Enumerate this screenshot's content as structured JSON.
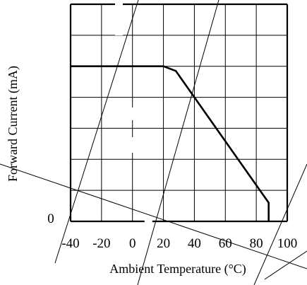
{
  "chart_data": {
    "type": "line",
    "title": "",
    "xlabel": "Ambient Temperature (°C)",
    "ylabel": "Forward Current (mA)",
    "xlim": [
      -40,
      100
    ],
    "ylim": [
      0,
      7
    ],
    "x_ticks": [
      -40,
      -20,
      0,
      20,
      40,
      60,
      80,
      100
    ],
    "x_tick_labels": [
      "-40",
      "-20",
      "0",
      "20",
      "40",
      "60",
      "80",
      "100"
    ],
    "y_ticks": [
      0
    ],
    "y_tick_labels": [
      "0"
    ],
    "y_grid_divisions": 7,
    "grid": true,
    "series": [
      {
        "x": [
          -40,
          20,
          28,
          88,
          88
        ],
        "y": [
          5,
          5,
          4.85,
          0.6,
          0
        ]
      }
    ]
  }
}
